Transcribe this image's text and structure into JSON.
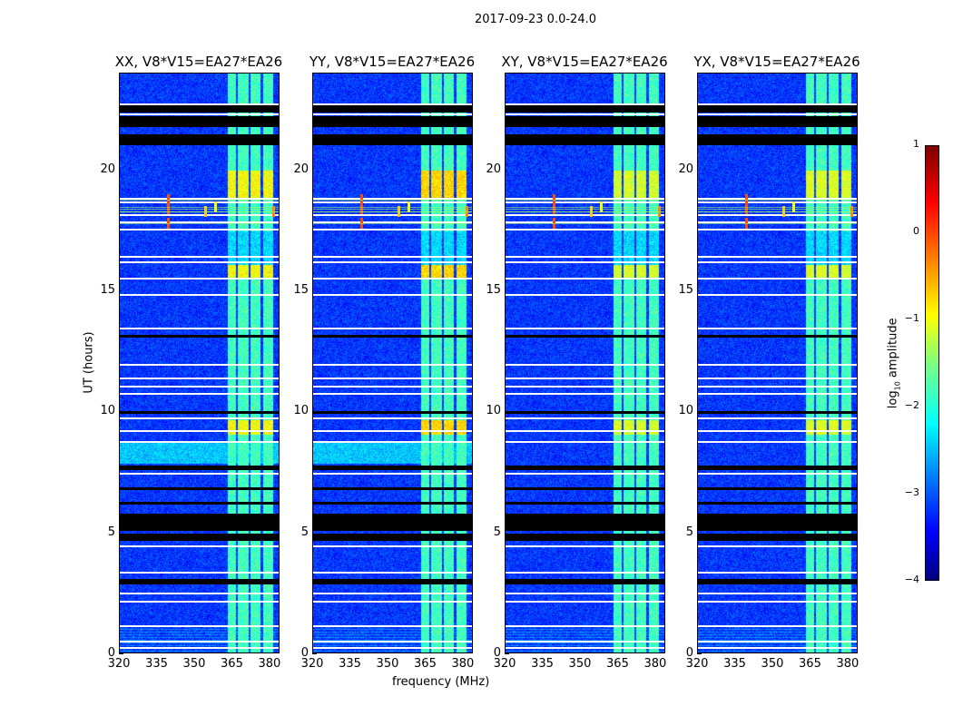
{
  "suptitle": "2017-09-23 0.0-24.0",
  "chart_data": {
    "type": "heatmap",
    "panels": [
      {
        "title": "XX, V8*V15=EA27*EA26",
        "bright_factor": 1.0
      },
      {
        "title": "YY, V8*V15=EA27*EA26",
        "bright_factor": 1.25
      },
      {
        "title": "XY, V8*V15=EA27*EA26",
        "bright_factor": 0.8
      },
      {
        "title": "YX, V8*V15=EA27*EA26",
        "bright_factor": 0.85
      }
    ],
    "xlabel": "frequency (MHz)",
    "ylabel": "UT (hours)",
    "xlim": [
      320,
      384
    ],
    "ylim": [
      0,
      24
    ],
    "xticks": [
      "320",
      "335",
      "350",
      "365",
      "380"
    ],
    "yticks": [
      "0",
      "5",
      "10",
      "15",
      "20"
    ],
    "colorbar": {
      "label_main": "log",
      "label_sub": "10",
      "label_rest": " amplitude",
      "range": [
        -4,
        1
      ],
      "ticks": [
        "1",
        "0",
        "−1",
        "−2",
        "−3",
        "−4"
      ],
      "colormap": "jet"
    },
    "background_level": -3.1,
    "rfi_bands_mhz": [
      [
        363,
        366
      ],
      [
        367,
        371
      ],
      [
        372,
        376
      ],
      [
        377,
        381
      ]
    ],
    "rfi_band_level": -1.8,
    "bright_band_hours": [
      [
        18.9,
        20.0
      ],
      [
        15.6,
        16.1
      ],
      [
        9.1,
        9.7
      ]
    ],
    "flagged_white_hours": [
      0.3,
      0.55,
      1.2,
      2.2,
      2.55,
      3.4,
      4.5,
      7.5,
      8.8,
      9.25,
      9.8,
      10.8,
      11.1,
      11.45,
      12.0,
      13.5,
      14.9,
      15.55,
      16.25,
      16.45,
      17.6,
      17.9,
      18.2,
      18.7,
      18.85,
      22.35,
      22.75
    ],
    "flagged_black_ranges_hours": [
      [
        2.9,
        3.1
      ],
      [
        4.7,
        5.0
      ],
      [
        5.1,
        5.8
      ],
      [
        6.2,
        6.3
      ],
      [
        6.8,
        6.9
      ],
      [
        7.6,
        7.8
      ],
      [
        9.95,
        10.05
      ],
      [
        13.1,
        13.2
      ],
      [
        21.05,
        21.5
      ],
      [
        21.8,
        22.25
      ],
      [
        22.4,
        22.7
      ]
    ],
    "rfi_spikes": [
      {
        "freq": 339,
        "hours": [
          17.8,
          18.4,
          18.8
        ],
        "level": 0.0
      },
      {
        "freq": 354,
        "hours": [
          18.3
        ],
        "level": -0.6
      },
      {
        "freq": 358,
        "hours": [
          18.5
        ],
        "level": -0.9
      },
      {
        "freq": 381,
        "hours": [
          18.3
        ],
        "level": -0.3
      }
    ]
  }
}
